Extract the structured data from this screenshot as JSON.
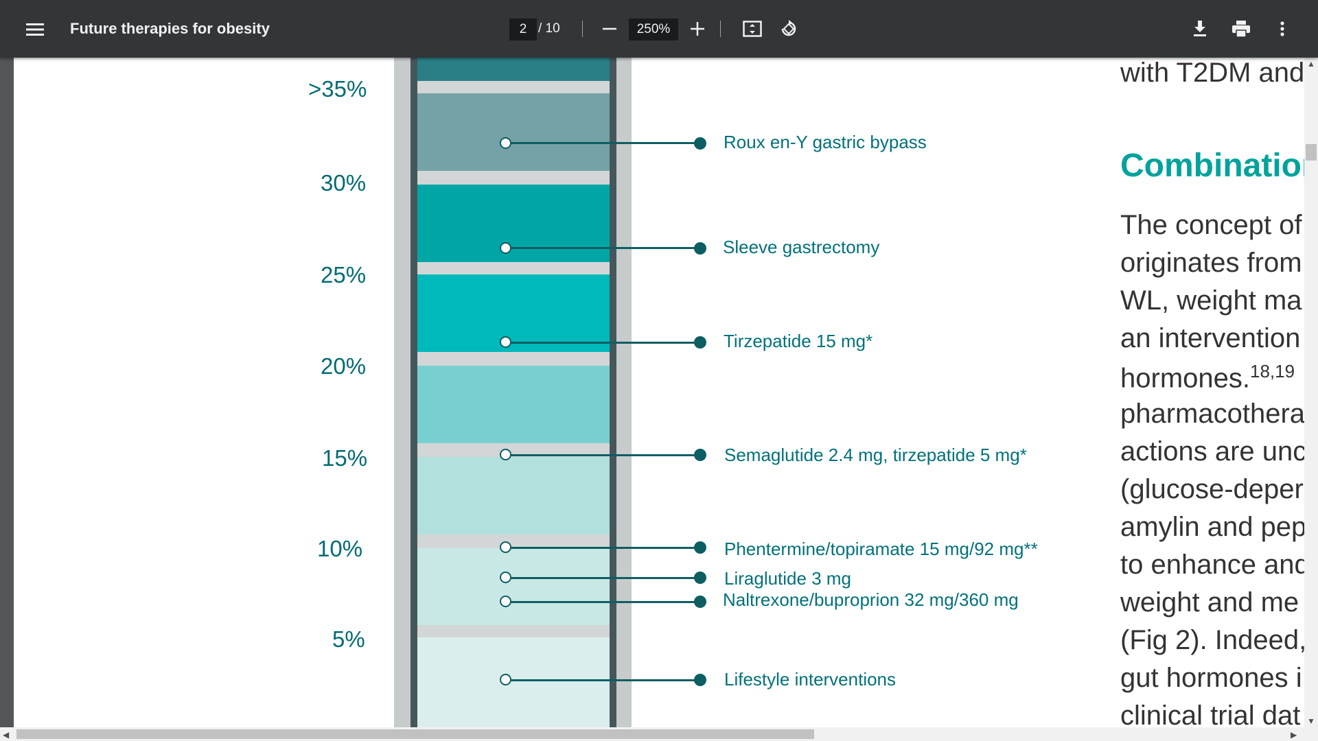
{
  "toolbar": {
    "title": "Future therapies for obesity",
    "page_current": "2",
    "page_total": "/ 10",
    "zoom": "250%"
  },
  "icons": {
    "menu": "hamburger-menu-icon",
    "zoom_out": "minus-icon",
    "zoom_in": "plus-icon",
    "fit": "fit-to-page-icon",
    "rotate": "rotate-icon",
    "download": "download-icon",
    "print": "print-icon",
    "more": "more-vertical-icon"
  },
  "figure": {
    "percent_labels": [
      ">35%",
      "30%",
      "25%",
      "20%",
      "15%",
      "10%",
      "5%"
    ],
    "therapies": [
      "Roux en-Y gastric bypass",
      "Sleeve gastrectomy",
      "Tirzepatide 15 mg*",
      "Semaglutide 2.4 mg, tirzepatide 5 mg*",
      "Phentermine/topiramate 15 mg/92 mg**",
      "Liraglutide 3 mg",
      "Naltrexone/buproprion 32 mg/360 mg",
      "Lifestyle interventions"
    ],
    "colors": {
      "teal_dark": "#006b73",
      "dot": "#0d5e63",
      "accent": "#00a39c"
    }
  },
  "article": {
    "line0": "with T2DM and",
    "heading": "Combination",
    "lines": [
      "The concept of",
      "originates from",
      "WL, weight ma",
      "an intervention",
      "hormones.",
      "pharmacothera",
      "actions are unc",
      "(glucose-deper",
      "amylin and pep",
      "to enhance and",
      "weight and me",
      "(Fig 2). Indeed,",
      "gut hormones i",
      "clinical trial dat"
    ],
    "ref": "18,19"
  }
}
